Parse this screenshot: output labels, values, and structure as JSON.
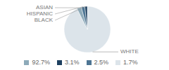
{
  "chart_data": {
    "type": "pie",
    "categories": [
      "WHITE",
      "ASIAN",
      "HISPANIC",
      "BLACK"
    ],
    "values": [
      92.7,
      3.1,
      2.5,
      1.7
    ],
    "value_labels": [
      "92.7%",
      "3.1%",
      "2.5%",
      "1.7%"
    ],
    "colors": [
      "#dce4ea",
      "#8daab9",
      "#4d7593",
      "#1e4060"
    ],
    "legend": "bottom"
  }
}
